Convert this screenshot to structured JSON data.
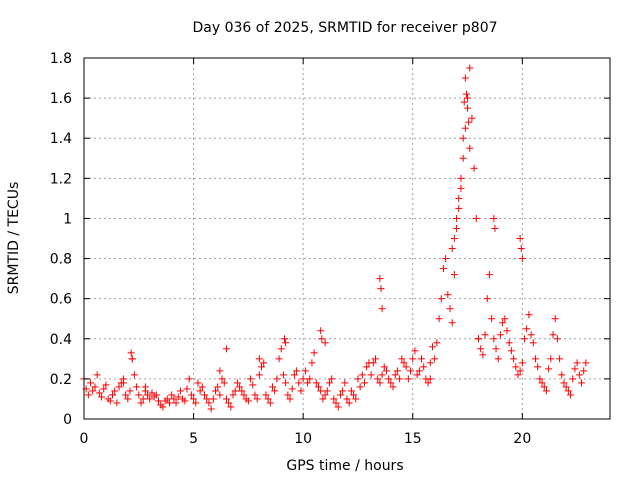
{
  "chart_data": {
    "type": "scatter",
    "title": "Day 036 of 2025, SRMTID for receiver p807",
    "xlabel": "GPS time / hours",
    "ylabel": "SRMTID / TECUs",
    "xlim": [
      0,
      24
    ],
    "ylim": [
      0,
      1.8
    ],
    "xticks": [
      0,
      5,
      10,
      15,
      20
    ],
    "xtick_labels": [
      "0",
      "5",
      "10",
      "15",
      "20"
    ],
    "yticks": [
      0,
      0.2,
      0.4,
      0.6,
      0.8,
      1.0,
      1.2,
      1.4,
      1.6,
      1.8
    ],
    "ytick_labels": [
      "0",
      "0.2",
      "0.4",
      "0.6",
      "0.8",
      "1",
      "1.2",
      "1.4",
      "1.6",
      "1.8"
    ],
    "grid": true,
    "marker": "+",
    "color": "#ff0000",
    "series": [
      {
        "name": "p807",
        "x": [
          0.0,
          0.1,
          0.2,
          0.3,
          0.4,
          0.5,
          0.6,
          0.7,
          0.8,
          0.9,
          1.0,
          1.1,
          1.2,
          1.3,
          1.4,
          1.5,
          1.6,
          1.7,
          1.8,
          1.9,
          2.0,
          2.1,
          2.2,
          2.3,
          2.4,
          2.5,
          2.6,
          2.7,
          2.8,
          2.9,
          3.0,
          3.1,
          3.2,
          3.3,
          3.4,
          3.5,
          3.6,
          3.7,
          3.8,
          3.9,
          4.0,
          4.1,
          4.2,
          4.3,
          4.4,
          4.5,
          4.6,
          4.7,
          4.8,
          4.9,
          5.0,
          5.1,
          5.2,
          5.3,
          5.4,
          5.5,
          5.6,
          5.7,
          5.8,
          5.9,
          6.0,
          6.1,
          6.2,
          6.3,
          6.4,
          6.5,
          6.6,
          6.7,
          6.8,
          6.9,
          7.0,
          7.1,
          7.2,
          7.3,
          7.4,
          7.5,
          7.6,
          7.7,
          7.8,
          7.9,
          8.0,
          8.1,
          8.2,
          8.3,
          8.4,
          8.5,
          8.6,
          8.7,
          8.8,
          8.9,
          9.0,
          9.1,
          9.2,
          9.3,
          9.4,
          9.5,
          9.6,
          9.7,
          9.8,
          9.9,
          10.0,
          10.1,
          10.2,
          10.3,
          10.4,
          10.5,
          10.6,
          10.7,
          10.8,
          10.9,
          11.0,
          11.1,
          11.2,
          11.3,
          11.4,
          11.5,
          11.6,
          11.7,
          11.8,
          11.9,
          12.0,
          12.1,
          12.2,
          12.3,
          12.4,
          12.5,
          12.6,
          12.7,
          12.8,
          12.9,
          13.0,
          13.1,
          13.2,
          13.3,
          13.4,
          13.5,
          13.6,
          13.7,
          13.8,
          13.9,
          14.0,
          14.1,
          14.2,
          14.3,
          14.4,
          14.5,
          14.6,
          14.7,
          14.8,
          14.9,
          15.0,
          15.1,
          15.2,
          15.3,
          15.4,
          15.5,
          15.6,
          15.7,
          15.8,
          15.9,
          16.0,
          16.1,
          16.2,
          16.3,
          16.4,
          16.5,
          16.6,
          16.7,
          16.8,
          16.9,
          17.0,
          17.1,
          17.2,
          17.3,
          17.4,
          17.5,
          17.6,
          17.7,
          17.8,
          17.9,
          18.0,
          18.1,
          18.2,
          18.3,
          18.4,
          18.5,
          18.6,
          18.7,
          18.8,
          18.9,
          19.0,
          19.1,
          19.2,
          19.3,
          19.4,
          19.5,
          19.6,
          19.7,
          19.8,
          19.9,
          20.0,
          20.1,
          20.2,
          20.3,
          20.4,
          20.5,
          20.6,
          20.7,
          20.8,
          20.9,
          21.0,
          21.1,
          21.2,
          21.3,
          21.4,
          21.5,
          21.6,
          21.7,
          21.8,
          21.9,
          22.0,
          22.1,
          22.2,
          22.3,
          22.4,
          22.5,
          22.6,
          22.7,
          22.8,
          22.9,
          13.5,
          13.55,
          13.6,
          17.4,
          17.45,
          17.5,
          17.55,
          17.35,
          17.3,
          17.6,
          16.8,
          16.9,
          17.0,
          17.1,
          17.2,
          18.7,
          18.75,
          19.9,
          19.95,
          20.0,
          9.15,
          9.2,
          10.8,
          10.85,
          6.5,
          2.15,
          2.2,
          1.8,
          15.8,
          18.0,
          8.0,
          11.0,
          6.2,
          2.8
        ],
        "y": [
          0.2,
          0.15,
          0.12,
          0.18,
          0.14,
          0.16,
          0.22,
          0.13,
          0.11,
          0.15,
          0.17,
          0.1,
          0.09,
          0.12,
          0.14,
          0.08,
          0.16,
          0.18,
          0.2,
          0.12,
          0.1,
          0.14,
          0.3,
          0.22,
          0.16,
          0.12,
          0.08,
          0.1,
          0.14,
          0.12,
          0.1,
          0.13,
          0.11,
          0.12,
          0.09,
          0.07,
          0.06,
          0.09,
          0.1,
          0.08,
          0.12,
          0.1,
          0.08,
          0.11,
          0.14,
          0.1,
          0.09,
          0.15,
          0.2,
          0.12,
          0.1,
          0.08,
          0.18,
          0.14,
          0.16,
          0.12,
          0.1,
          0.08,
          0.05,
          0.1,
          0.14,
          0.16,
          0.12,
          0.2,
          0.18,
          0.1,
          0.08,
          0.06,
          0.12,
          0.14,
          0.18,
          0.16,
          0.14,
          0.12,
          0.1,
          0.09,
          0.2,
          0.17,
          0.12,
          0.1,
          0.22,
          0.26,
          0.28,
          0.12,
          0.1,
          0.08,
          0.16,
          0.14,
          0.2,
          0.3,
          0.35,
          0.22,
          0.18,
          0.12,
          0.1,
          0.15,
          0.22,
          0.24,
          0.18,
          0.14,
          0.2,
          0.24,
          0.18,
          0.2,
          0.28,
          0.33,
          0.18,
          0.16,
          0.14,
          0.1,
          0.12,
          0.14,
          0.18,
          0.2,
          0.1,
          0.08,
          0.06,
          0.12,
          0.14,
          0.18,
          0.1,
          0.08,
          0.14,
          0.12,
          0.1,
          0.2,
          0.16,
          0.22,
          0.18,
          0.26,
          0.28,
          0.22,
          0.28,
          0.3,
          0.2,
          0.18,
          0.22,
          0.26,
          0.24,
          0.2,
          0.18,
          0.16,
          0.22,
          0.24,
          0.2,
          0.3,
          0.28,
          0.26,
          0.2,
          0.24,
          0.3,
          0.34,
          0.22,
          0.24,
          0.3,
          0.26,
          0.2,
          0.18,
          0.28,
          0.36,
          0.3,
          0.38,
          0.5,
          0.6,
          0.75,
          0.8,
          0.62,
          0.55,
          0.48,
          0.72,
          0.95,
          1.05,
          1.2,
          1.3,
          1.45,
          1.6,
          1.75,
          1.5,
          1.25,
          1.0,
          0.4,
          0.35,
          0.32,
          0.42,
          0.6,
          0.72,
          0.5,
          0.4,
          0.35,
          0.3,
          0.42,
          0.48,
          0.5,
          0.44,
          0.38,
          0.34,
          0.3,
          0.26,
          0.22,
          0.24,
          0.28,
          0.4,
          0.45,
          0.52,
          0.42,
          0.38,
          0.3,
          0.26,
          0.2,
          0.18,
          0.16,
          0.14,
          0.25,
          0.3,
          0.42,
          0.5,
          0.4,
          0.3,
          0.22,
          0.18,
          0.16,
          0.14,
          0.12,
          0.2,
          0.25,
          0.28,
          0.22,
          0.18,
          0.24,
          0.28,
          0.7,
          0.65,
          0.55,
          1.7,
          1.62,
          1.55,
          1.48,
          1.58,
          1.4,
          1.35,
          0.85,
          0.9,
          1.0,
          1.1,
          1.15,
          1.0,
          0.95,
          0.9,
          0.85,
          0.8,
          0.4,
          0.38,
          0.44,
          0.4,
          0.35,
          0.33,
          0.3,
          0.18,
          0.2,
          0.4,
          0.3,
          0.38,
          0.24,
          0.16
        ]
      }
    ]
  }
}
